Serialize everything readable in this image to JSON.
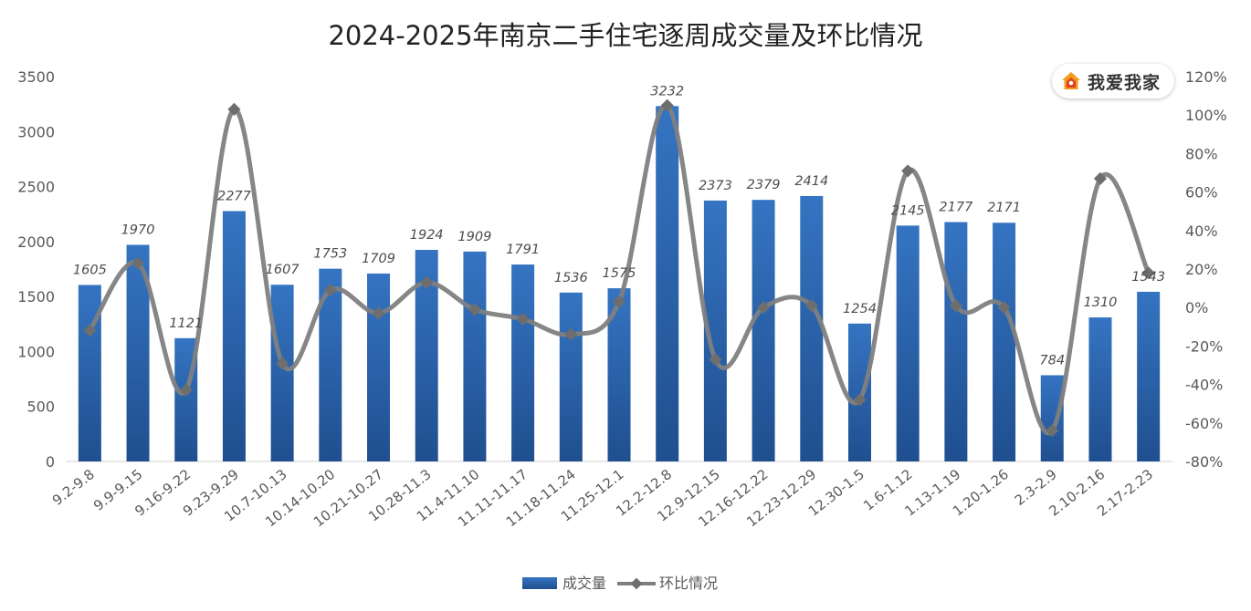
{
  "chart_data": {
    "type": "bar",
    "title": "2024-2025年南京二手住宅逐周成交量及环比情况",
    "categories": [
      "9.2-9.8",
      "9.9-9.15",
      "9.16-9.22",
      "9.23-9.29",
      "10.7-10.13",
      "10.14-10.20",
      "10.21-10.27",
      "10.28-11.3",
      "11.4-11.10",
      "11.11-11.17",
      "11.18-11.24",
      "11.25-12.1",
      "12.2-12.8",
      "12.9-12.15",
      "12.16-12.22",
      "12.23-12.29",
      "12.30-1.5",
      "1.6-1.12",
      "1.13-1.19",
      "1.20-1.26",
      "2.3-2.9",
      "2.10-2.16",
      "2.17-2.23"
    ],
    "series": [
      {
        "name": "成交量",
        "type": "bar",
        "axis": "left",
        "color": "#2e6db4",
        "values": [
          1605,
          1970,
          1121,
          2277,
          1607,
          1753,
          1709,
          1924,
          1909,
          1791,
          1536,
          1575,
          3232,
          2373,
          2379,
          2414,
          1254,
          2145,
          2177,
          2171,
          784,
          1310,
          1543
        ]
      },
      {
        "name": "环比情况",
        "type": "line",
        "axis": "right",
        "color": "#7f7f7f",
        "unit": "%",
        "values": [
          -12,
          23,
          -43,
          103,
          -29,
          9,
          -3,
          13,
          -1,
          -6,
          -14,
          3,
          105,
          -27,
          0,
          1,
          -48,
          71,
          1,
          0,
          -64,
          67,
          18
        ]
      }
    ],
    "ylim_left": [
      0,
      3500
    ],
    "yticks_left": [
      "0",
      "500",
      "1000",
      "1500",
      "2000",
      "2500",
      "3000",
      "3500"
    ],
    "ylim_right": [
      -80,
      120
    ],
    "yticks_right": [
      "-80%",
      "-60%",
      "-40%",
      "-20%",
      "0%",
      "20%",
      "40%",
      "60%",
      "80%",
      "100%",
      "120%"
    ],
    "grid": false,
    "legend_position": "bottom"
  },
  "logo": {
    "text": "我爱我家",
    "icon": "house-icon"
  }
}
